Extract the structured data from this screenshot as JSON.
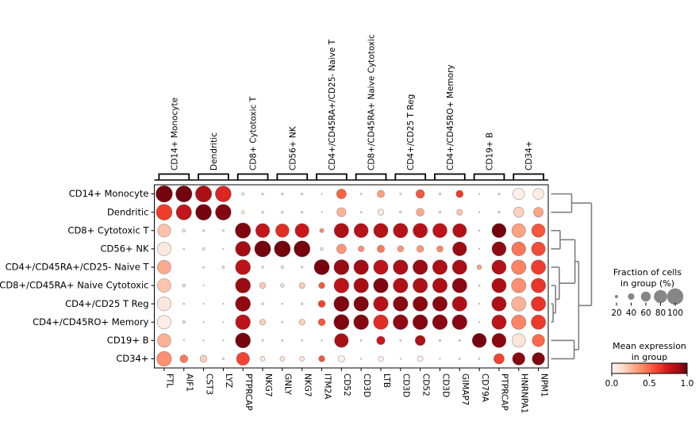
{
  "chart_data": {
    "type": "dotplot",
    "description": "Dot plot of mean expression and fraction of expressing cells per marker gene across cell-type groups, with column group brackets, row dendrogram, size legend and color legend",
    "rows": [
      "CD14+ Monocyte",
      "Dendritic",
      "CD8+ Cytotoxic T",
      "CD56+ NK",
      "CD4+/CD45RA+/CD25- Naive T",
      "CD8+/CD45RA+ Naive Cytotoxic",
      "CD4+/CD25 T Reg",
      "CD4+/CD45RO+ Memory",
      "CD19+ B",
      "CD34+"
    ],
    "columns": [
      "FTL",
      "AIF1",
      "CST3",
      "LYZ",
      "PTPRCAP",
      "NKG7",
      "GNLY",
      "NKG7",
      "ITM2A",
      "CD52",
      "CD3D",
      "LTB",
      "CD3D",
      "CD52",
      "CD3D",
      "GIMAP7",
      "CD79A",
      "PTPRCAP",
      "HNRNPA1",
      "NPM1"
    ],
    "column_groups": [
      "CD14+ Monocyte",
      "Dendritic",
      "CD8+ Cytotoxic T",
      "CD56+ NK",
      "CD4+/CD45RA+/CD25- Naive T",
      "CD8+/CD45RA+ Naive Cytotoxic",
      "CD4+/CD25 T Reg",
      "CD4+/CD45RO+ Memory",
      "CD19+ B",
      "CD34+"
    ],
    "columns_per_group": 2,
    "cells_fraction_expression": [
      [
        [
          97,
          0.97
        ],
        [
          95,
          0.98
        ],
        [
          95,
          0.86
        ],
        [
          93,
          0.7
        ],
        [
          15,
          0.04
        ],
        [
          12,
          0.04
        ],
        [
          12,
          0.04
        ],
        [
          12,
          0.04
        ],
        [
          5,
          0.08
        ],
        [
          57,
          0.52
        ],
        [
          10,
          0.08
        ],
        [
          43,
          0.33
        ],
        [
          10,
          0.08
        ],
        [
          50,
          0.55
        ],
        [
          12,
          0.08
        ],
        [
          42,
          0.63
        ],
        [
          4,
          0.15
        ],
        [
          11,
          0.08
        ],
        [
          68,
          0.03
        ],
        [
          64,
          0.05
        ]
      ],
      [
        [
          93,
          0.62
        ],
        [
          90,
          0.78
        ],
        [
          93,
          0.97
        ],
        [
          92,
          0.94
        ],
        [
          18,
          0.07
        ],
        [
          12,
          0.05
        ],
        [
          13,
          0.05
        ],
        [
          12,
          0.05
        ],
        [
          6,
          0.08
        ],
        [
          53,
          0.27
        ],
        [
          10,
          0.08
        ],
        [
          36,
          0.07
        ],
        [
          12,
          0.08
        ],
        [
          46,
          0.3
        ],
        [
          13,
          0.08
        ],
        [
          34,
          0.22
        ],
        [
          4,
          0.15
        ],
        [
          12,
          0.07
        ],
        [
          60,
          0.18
        ],
        [
          57,
          0.32
        ]
      ],
      [
        [
          76,
          0.23
        ],
        [
          19,
          0.12
        ],
        [
          11,
          0.05
        ],
        [
          11,
          0.05
        ],
        [
          90,
          0.95
        ],
        [
          82,
          0.78
        ],
        [
          79,
          0.67
        ],
        [
          82,
          0.76
        ],
        [
          24,
          0.38
        ],
        [
          85,
          0.85
        ],
        [
          83,
          0.82
        ],
        [
          84,
          0.82
        ],
        [
          85,
          0.82
        ],
        [
          85,
          0.82
        ],
        [
          84,
          0.8
        ],
        [
          81,
          0.84
        ],
        [
          8,
          0.08
        ],
        [
          83,
          0.98
        ],
        [
          81,
          0.33
        ],
        [
          79,
          0.55
        ]
      ],
      [
        [
          80,
          0.08
        ],
        [
          8,
          0.08
        ],
        [
          14,
          0.05
        ],
        [
          5,
          0.08
        ],
        [
          88,
          0.88
        ],
        [
          94,
          0.97
        ],
        [
          94,
          0.97
        ],
        [
          94,
          0.97
        ],
        [
          16,
          0.14
        ],
        [
          56,
          0.36
        ],
        [
          34,
          0.38
        ],
        [
          43,
          0.45
        ],
        [
          36,
          0.35
        ],
        [
          41,
          0.36
        ],
        [
          37,
          0.4
        ],
        [
          82,
          0.9
        ],
        [
          4,
          0.08
        ],
        [
          83,
          0.92
        ],
        [
          82,
          0.46
        ],
        [
          81,
          0.58
        ]
      ],
      [
        [
          80,
          0.3
        ],
        [
          0,
          0
        ],
        [
          9,
          0.06
        ],
        [
          14,
          0.07
        ],
        [
          88,
          0.8
        ],
        [
          12,
          0.05
        ],
        [
          16,
          0.08
        ],
        [
          12,
          0.05
        ],
        [
          89,
          0.97
        ],
        [
          88,
          0.9
        ],
        [
          86,
          0.88
        ],
        [
          85,
          0.8
        ],
        [
          86,
          0.85
        ],
        [
          86,
          0.9
        ],
        [
          86,
          0.85
        ],
        [
          85,
          0.87
        ],
        [
          27,
          0.32
        ],
        [
          84,
          0.83
        ],
        [
          85,
          0.42
        ],
        [
          85,
          0.62
        ]
      ],
      [
        [
          79,
          0.22
        ],
        [
          16,
          0.14
        ],
        [
          4,
          0.08
        ],
        [
          0,
          0
        ],
        [
          88,
          0.9
        ],
        [
          35,
          0.2
        ],
        [
          21,
          0.12
        ],
        [
          34,
          0.2
        ],
        [
          36,
          0.55
        ],
        [
          87,
          0.8
        ],
        [
          86,
          0.87
        ],
        [
          86,
          0.95
        ],
        [
          86,
          0.84
        ],
        [
          86,
          0.85
        ],
        [
          86,
          0.85
        ],
        [
          86,
          0.93
        ],
        [
          9,
          0.08
        ],
        [
          85,
          0.85
        ],
        [
          85,
          0.38
        ],
        [
          85,
          0.65
        ]
      ],
      [
        [
          81,
          0.09
        ],
        [
          9,
          0.08
        ],
        [
          4,
          0.08
        ],
        [
          6,
          0.08
        ],
        [
          88,
          0.92
        ],
        [
          12,
          0.06
        ],
        [
          8,
          0.06
        ],
        [
          12,
          0.06
        ],
        [
          41,
          0.6
        ],
        [
          89,
          0.95
        ],
        [
          86,
          0.95
        ],
        [
          86,
          0.82
        ],
        [
          86,
          0.93
        ],
        [
          86,
          0.93
        ],
        [
          86,
          0.93
        ],
        [
          86,
          0.85
        ],
        [
          5,
          0.08
        ],
        [
          85,
          0.85
        ],
        [
          85,
          0.28
        ],
        [
          85,
          0.65
        ]
      ],
      [
        [
          80,
          0.05
        ],
        [
          16,
          0.16
        ],
        [
          5,
          0.06
        ],
        [
          7,
          0.06
        ],
        [
          87,
          0.8
        ],
        [
          35,
          0.18
        ],
        [
          9,
          0.06
        ],
        [
          35,
          0.18
        ],
        [
          41,
          0.55
        ],
        [
          89,
          0.95
        ],
        [
          87,
          0.94
        ],
        [
          86,
          0.68
        ],
        [
          87,
          0.92
        ],
        [
          87,
          0.94
        ],
        [
          87,
          0.93
        ],
        [
          87,
          0.93
        ],
        [
          4,
          0.08
        ],
        [
          85,
          0.8
        ],
        [
          85,
          0.42
        ],
        [
          85,
          0.63
        ]
      ],
      [
        [
          79,
          0.28
        ],
        [
          7,
          0.08
        ],
        [
          7,
          0.08
        ],
        [
          4,
          0.08
        ],
        [
          88,
          0.97
        ],
        [
          10,
          0.06
        ],
        [
          10,
          0.06
        ],
        [
          9,
          0.06
        ],
        [
          8,
          0.1
        ],
        [
          81,
          0.87
        ],
        [
          9,
          0.08
        ],
        [
          49,
          0.75
        ],
        [
          9,
          0.08
        ],
        [
          59,
          0.85
        ],
        [
          11,
          0.08
        ],
        [
          11,
          0.08
        ],
        [
          83,
          0.97
        ],
        [
          83,
          0.93
        ],
        [
          79,
          0.1
        ],
        [
          73,
          0.5
        ]
      ],
      [
        [
          86,
          0.38
        ],
        [
          46,
          0.45
        ],
        [
          41,
          0.18
        ],
        [
          11,
          0.06
        ],
        [
          76,
          0.6
        ],
        [
          28,
          0.09
        ],
        [
          28,
          0.11
        ],
        [
          28,
          0.09
        ],
        [
          36,
          0.55
        ],
        [
          39,
          0.04
        ],
        [
          7,
          0.08
        ],
        [
          31,
          0.04
        ],
        [
          7,
          0.08
        ],
        [
          33,
          0.04
        ],
        [
          7,
          0.08
        ],
        [
          9,
          0.08
        ],
        [
          8,
          0.08
        ],
        [
          61,
          0.6
        ],
        [
          73,
          0.93
        ],
        [
          73,
          0.95
        ]
      ]
    ],
    "dendrogram": {
      "color": "#7f7f7f",
      "merges": [
        {
          "name": "monocyte-dendritic",
          "leaves": [
            1,
            2
          ],
          "depth": 0.5
        },
        {
          "name": "cytotoxic-nk",
          "leaves": [
            3,
            4
          ],
          "depth": 0.22
        },
        {
          "name": "treg-memory",
          "leaves": [
            7,
            8
          ],
          "depth": 0.05
        },
        {
          "name": "naivecyto-join",
          "leaves": [
            6,
            "treg-memory"
          ],
          "depth": 0.11
        },
        {
          "name": "naivet-join",
          "leaves": [
            5,
            "naivecyto-join"
          ],
          "depth": 0.2
        },
        {
          "name": "t-nk-join",
          "leaves": [
            "cytotoxic-nk",
            "naivet-join"
          ],
          "depth": 0.58
        },
        {
          "name": "b-cd34",
          "leaves": [
            9,
            10
          ],
          "depth": 0.56
        },
        {
          "name": "lower-join",
          "leaves": [
            "t-nk-join",
            "b-cd34"
          ],
          "depth": 0.67
        },
        {
          "name": "root",
          "leaves": [
            "monocyte-dendritic",
            "lower-join"
          ],
          "depth": 0.98
        }
      ]
    },
    "size_legend": {
      "title_lines": [
        "Fraction of cells",
        "in group (%)"
      ],
      "values": [
        20,
        40,
        60,
        80,
        100
      ],
      "tick_labels": [
        "20",
        "40",
        "60",
        "80",
        "100"
      ],
      "dot_color": "#868686"
    },
    "color_legend": {
      "title_lines": [
        "Mean expression",
        "in group"
      ],
      "tick_labels": [
        "0.0",
        "0.5",
        "1.0"
      ],
      "tick_values": [
        0.0,
        0.5,
        1.0
      ],
      "range": [
        0.0,
        1.0
      ],
      "colormap_name": "Reds",
      "colormap_stops": [
        "#fff5f0",
        "#fee0d2",
        "#fcbba1",
        "#fc9272",
        "#fb6a4a",
        "#ef3b2c",
        "#cb181d",
        "#a50f15",
        "#67000d"
      ]
    },
    "style": {
      "frame_color": "#000000",
      "dot_edge_color": "#4a4a4a",
      "background": "#ffffff"
    }
  }
}
